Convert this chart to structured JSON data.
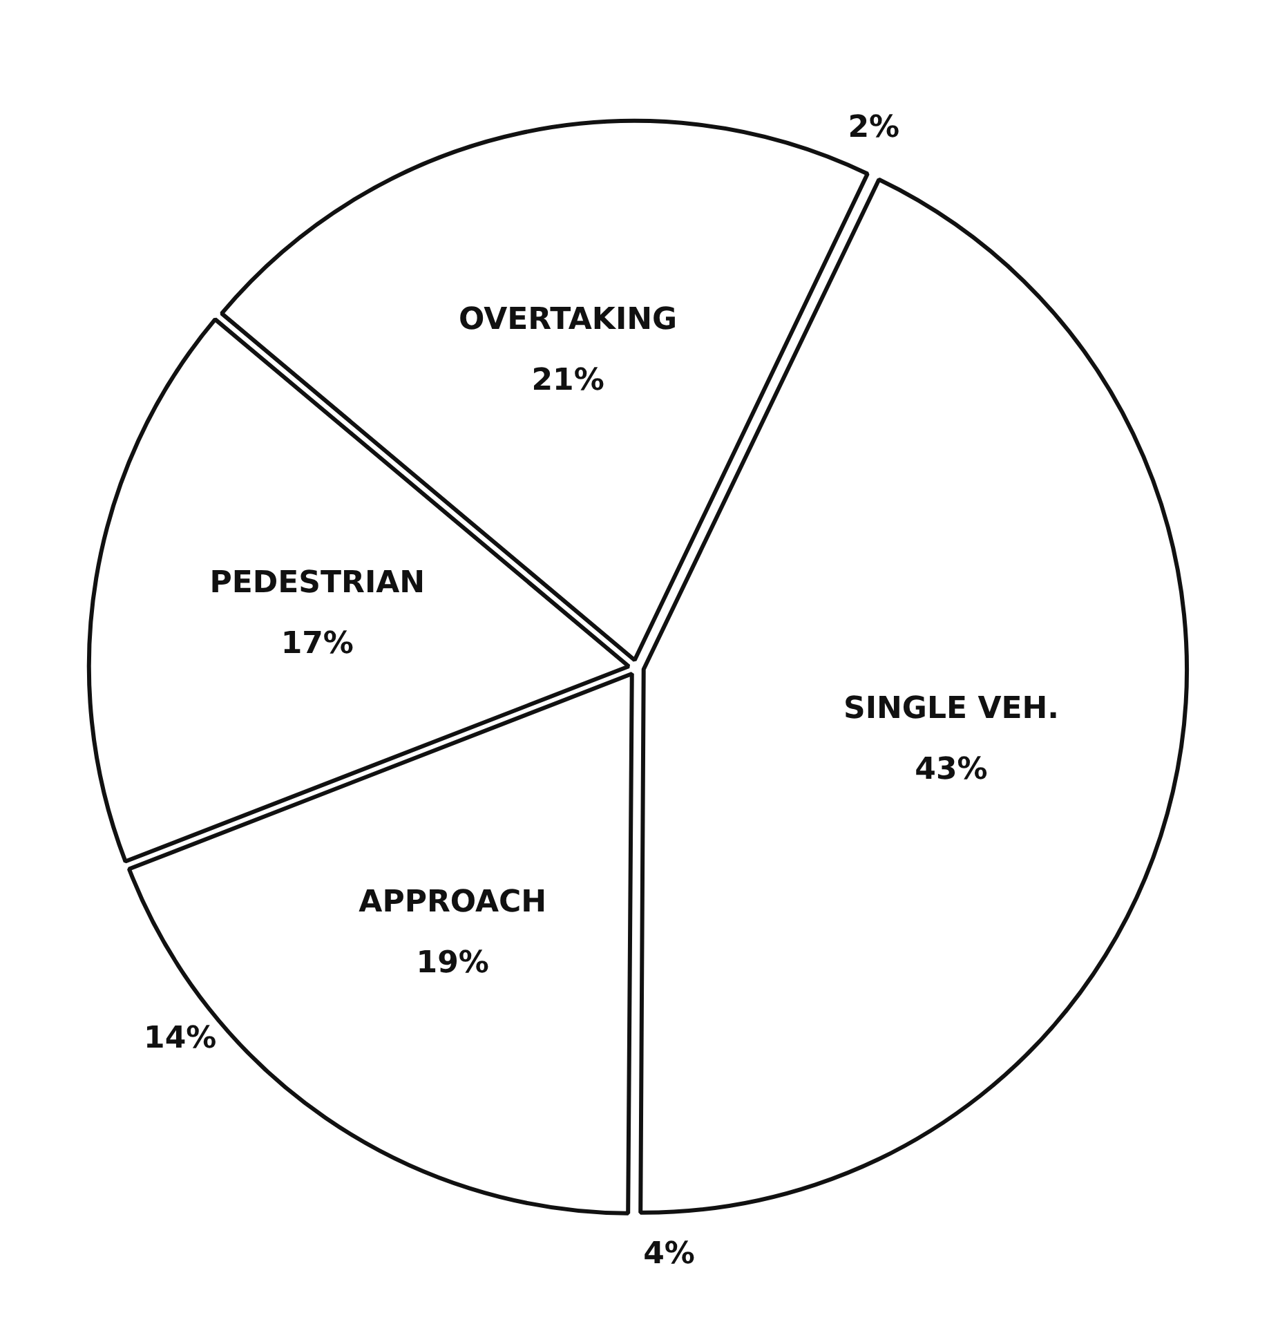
{
  "chart_data": {
    "type": "pie",
    "categories": [
      "OVERTAKING",
      "SINGLE VEH.",
      "APPROACH",
      "PEDESTRIAN"
    ],
    "values": [
      21,
      43,
      19,
      17
    ],
    "colors": [
      "#ffffff",
      "#ffffff",
      "#ffffff",
      "#ffffff"
    ],
    "value_labels": [
      "21%",
      "43%",
      "19%",
      "17%"
    ],
    "legend": false,
    "annotations": [
      "2%",
      "4%",
      "14%"
    ]
  }
}
